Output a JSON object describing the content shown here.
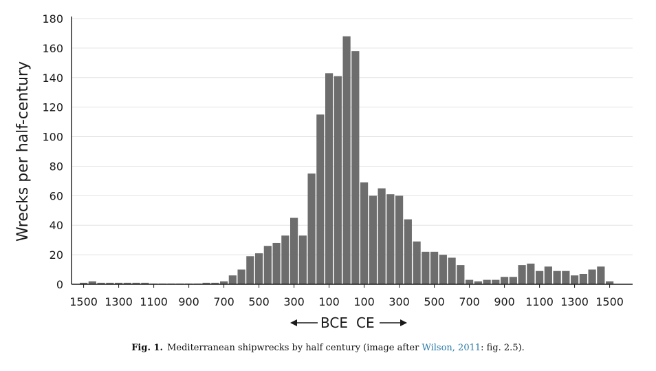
{
  "chart_data": {
    "type": "bar",
    "ylabel": "Wrecks per half-century",
    "ylim": [
      0,
      180
    ],
    "yticks": [
      0,
      20,
      40,
      60,
      80,
      100,
      120,
      140,
      160,
      180
    ],
    "xtick_labels": [
      "1500",
      "1300",
      "1100",
      "900",
      "700",
      "500",
      "300",
      "100",
      "100",
      "300",
      "500",
      "700",
      "900",
      "1100",
      "1300",
      "1500"
    ],
    "era_label_bce": "BCE",
    "era_label_ce": "CE",
    "bar_color": "#6d6d6d",
    "grid": true,
    "values": [
      1,
      2,
      1,
      1,
      1,
      1,
      1,
      1,
      0.5,
      0.5,
      0.5,
      0.5,
      0.5,
      0.5,
      1,
      1,
      2,
      6,
      10,
      19,
      21,
      26,
      28,
      33,
      45,
      33,
      75,
      115,
      143,
      141,
      168,
      158,
      69,
      60,
      65,
      61,
      60,
      44,
      29,
      22,
      22,
      20,
      18,
      13,
      3,
      2,
      3,
      3,
      5,
      5,
      13,
      14,
      9,
      12,
      9,
      9,
      6,
      7,
      10,
      12,
      2
    ]
  },
  "caption": {
    "fig_label": "Fig. 1.",
    "text_before": "Mediterranean shipwrecks by half century (image after ",
    "citation": "Wilson, 2011",
    "text_after": ": fig. 2.5)."
  }
}
